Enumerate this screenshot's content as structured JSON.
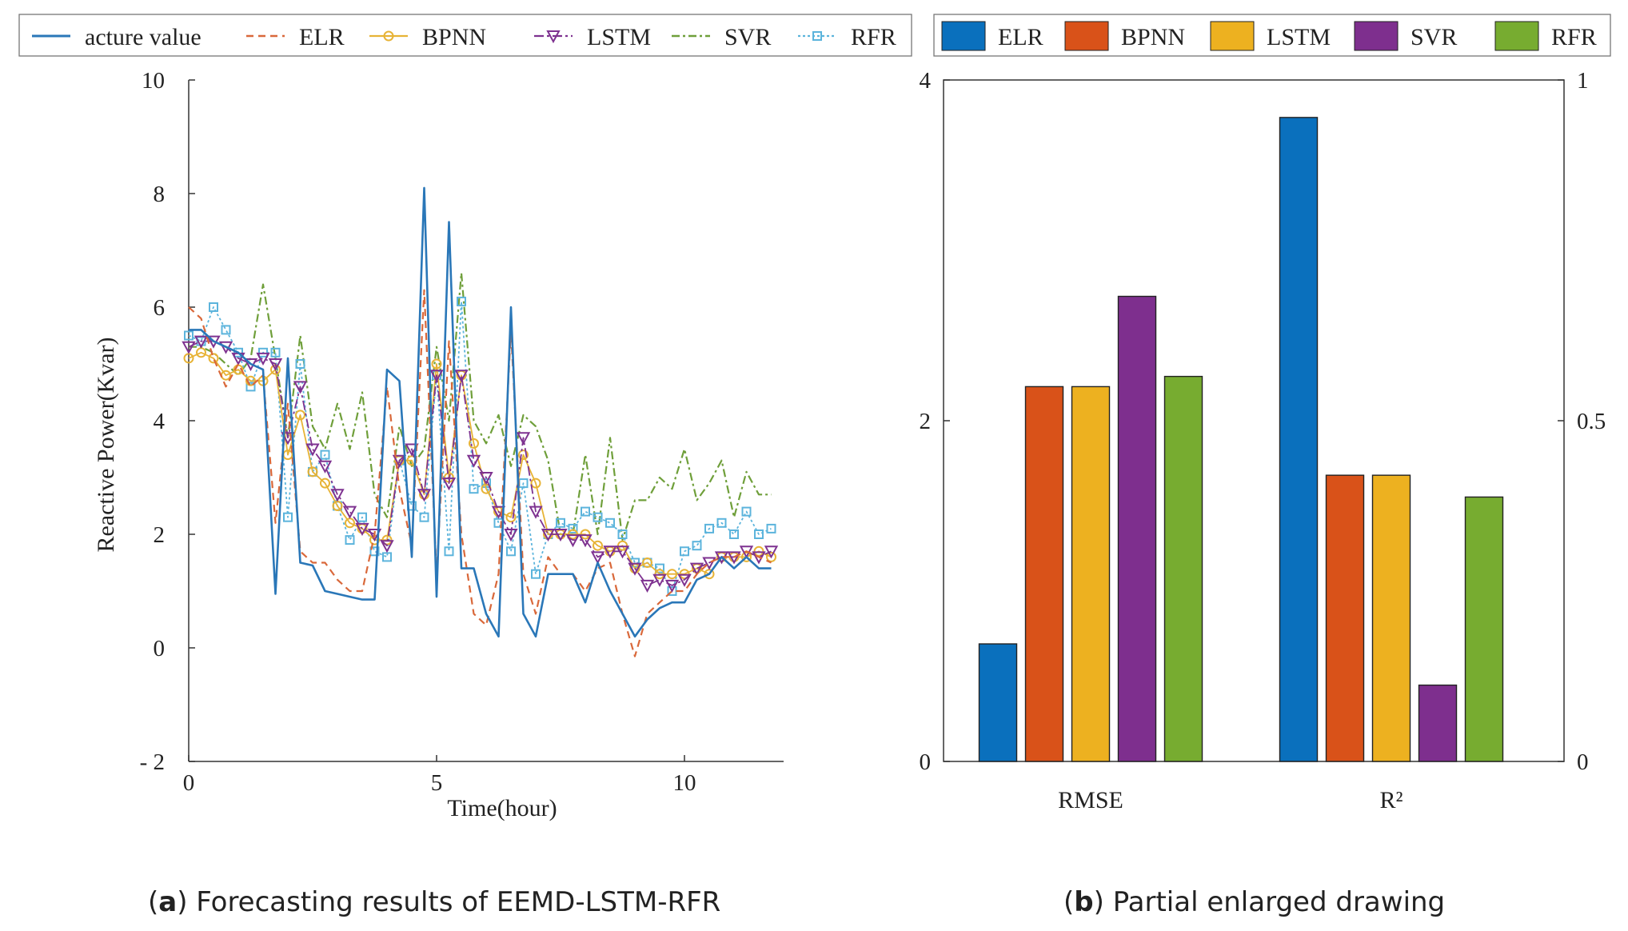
{
  "captions": {
    "a": {
      "letter": "a",
      "text": "Forecasting results of EEMD-LSTM-RFR"
    },
    "b": {
      "letter": "b",
      "text": "Partial enlarged drawing"
    }
  },
  "chart_data": [
    {
      "type": "line",
      "panel": "a",
      "title": "",
      "xlabel": "Time(hour)",
      "ylabel": "Reactive Power(Kvar)",
      "xlim": [
        0,
        12
      ],
      "ylim": [
        -2,
        10
      ],
      "xticks": [
        "0",
        "5",
        "10"
      ],
      "yticks": [
        "- 2",
        "0",
        "2",
        "4",
        "6",
        "8",
        "10"
      ],
      "legend": [
        "acture value",
        "ELR",
        "BPNN",
        "LSTM",
        "SVR",
        "RFR"
      ],
      "colors": {
        "acture value": "#2a77b8",
        "ELR": "#d9683a",
        "BPNN": "#e7b336",
        "LSTM": "#7e3290",
        "SVR": "#6f9f3a",
        "RFR": "#5cb4dc"
      },
      "x": [
        0,
        0.25,
        0.5,
        0.75,
        1,
        1.25,
        1.5,
        1.75,
        2,
        2.25,
        2.5,
        2.75,
        3,
        3.25,
        3.5,
        3.75,
        4,
        4.25,
        4.5,
        4.75,
        5,
        5.25,
        5.5,
        5.75,
        6,
        6.25,
        6.5,
        6.75,
        7,
        7.25,
        7.5,
        7.75,
        8,
        8.25,
        8.5,
        8.75,
        9,
        9.25,
        9.5,
        9.75,
        10,
        10.25,
        10.5,
        10.75,
        11,
        11.25,
        11.5,
        11.75
      ],
      "series": [
        {
          "name": "acture value",
          "values": [
            5.6,
            5.6,
            5.4,
            5.3,
            5.2,
            5.0,
            4.9,
            0.95,
            5.1,
            1.5,
            1.45,
            1.0,
            0.95,
            0.9,
            0.85,
            0.85,
            4.9,
            4.7,
            1.6,
            8.1,
            0.9,
            7.5,
            1.4,
            1.4,
            0.6,
            0.2,
            6.0,
            0.6,
            0.2,
            1.3,
            1.3,
            1.3,
            0.8,
            1.5,
            1.0,
            0.6,
            0.2,
            0.5,
            0.7,
            0.8,
            0.8,
            1.2,
            1.3,
            1.6,
            1.4,
            1.6,
            1.4,
            1.4
          ]
        },
        {
          "name": "ELR",
          "values": [
            6.0,
            5.8,
            5.1,
            4.6,
            5.0,
            4.6,
            4.8,
            2.2,
            4.3,
            1.7,
            1.5,
            1.5,
            1.2,
            1.0,
            1.0,
            2.0,
            4.6,
            2.8,
            1.8,
            6.3,
            1.3,
            5.4,
            2.0,
            0.6,
            0.4,
            1.3,
            5.6,
            1.3,
            0.6,
            1.6,
            1.3,
            1.3,
            1.0,
            1.4,
            1.5,
            0.6,
            -0.15,
            0.6,
            0.8,
            1.0,
            1.0,
            1.3,
            1.5,
            1.6,
            1.6,
            1.7,
            1.6,
            1.5
          ]
        },
        {
          "name": "BPNN",
          "values": [
            5.1,
            5.2,
            5.1,
            4.8,
            4.9,
            4.7,
            4.7,
            4.9,
            3.4,
            4.1,
            3.1,
            2.9,
            2.5,
            2.2,
            2.1,
            1.9,
            1.9,
            3.3,
            3.3,
            2.7,
            5.0,
            3.0,
            4.8,
            3.6,
            2.8,
            2.4,
            2.3,
            3.4,
            2.9,
            2.0,
            2.0,
            2.0,
            2.0,
            1.8,
            1.7,
            1.8,
            1.4,
            1.5,
            1.3,
            1.3,
            1.3,
            1.4,
            1.3,
            1.6,
            1.6,
            1.6,
            1.7,
            1.6
          ]
        },
        {
          "name": "LSTM",
          "values": [
            5.3,
            5.4,
            5.4,
            5.3,
            5.1,
            5.0,
            5.1,
            5.0,
            3.7,
            4.6,
            3.5,
            3.2,
            2.7,
            2.4,
            2.1,
            2.0,
            1.8,
            3.3,
            3.5,
            2.7,
            4.8,
            2.9,
            4.8,
            3.3,
            3.0,
            2.4,
            2.0,
            3.7,
            2.4,
            2.0,
            2.0,
            1.9,
            1.9,
            1.6,
            1.7,
            1.7,
            1.4,
            1.1,
            1.2,
            1.1,
            1.2,
            1.4,
            1.5,
            1.6,
            1.6,
            1.7,
            1.6,
            1.7
          ]
        },
        {
          "name": "SVR",
          "values": [
            5.3,
            5.3,
            5.2,
            5.0,
            4.8,
            5.1,
            6.4,
            5.1,
            3.7,
            5.5,
            3.9,
            3.5,
            4.3,
            3.5,
            4.5,
            2.7,
            2.3,
            3.9,
            3.2,
            3.5,
            5.3,
            4.0,
            6.6,
            4.0,
            3.6,
            4.1,
            3.2,
            4.1,
            3.9,
            3.3,
            2.0,
            2.0,
            3.4,
            2.0,
            3.7,
            1.9,
            2.6,
            2.6,
            3.0,
            2.8,
            3.5,
            2.6,
            2.9,
            3.3,
            2.3,
            3.1,
            2.7,
            2.7
          ]
        },
        {
          "name": "RFR",
          "values": [
            5.5,
            5.4,
            6.0,
            5.6,
            5.2,
            4.6,
            5.2,
            5.2,
            2.3,
            5.0,
            3.1,
            3.4,
            2.5,
            1.9,
            2.3,
            1.7,
            1.6,
            3.3,
            2.5,
            2.3,
            4.8,
            1.7,
            6.1,
            2.8,
            2.9,
            2.2,
            1.7,
            2.9,
            1.3,
            2.0,
            2.2,
            2.1,
            2.4,
            2.3,
            2.2,
            2.0,
            1.5,
            1.5,
            1.4,
            1.0,
            1.7,
            1.8,
            2.1,
            2.2,
            2.0,
            2.4,
            2.0,
            2.1
          ]
        }
      ]
    },
    {
      "type": "bar",
      "panel": "b",
      "title": "",
      "categories": [
        "RMSE",
        "R²"
      ],
      "legend": [
        "ELR",
        "BPNN",
        "LSTM",
        "SVR",
        "RFR"
      ],
      "colors": {
        "ELR": "#0a70bd",
        "BPNN": "#d95219",
        "LSTM": "#edb120",
        "SVR": "#7e2f8e",
        "RFR": "#77ac30"
      },
      "left_axis": {
        "ylim": [
          0,
          4
        ],
        "ticks": [
          "0",
          "2",
          "4"
        ]
      },
      "right_axis": {
        "ylim": [
          0,
          1
        ],
        "ticks": [
          "0",
          "0.5",
          "1"
        ]
      },
      "series": [
        {
          "name": "ELR",
          "values": [
            0.69,
            0.945
          ]
        },
        {
          "name": "BPNN",
          "values": [
            2.2,
            0.42
          ]
        },
        {
          "name": "LSTM",
          "values": [
            2.2,
            0.42
          ]
        },
        {
          "name": "SVR",
          "values": [
            2.73,
            0.112
          ]
        },
        {
          "name": "RFR",
          "values": [
            2.26,
            0.388
          ]
        }
      ]
    }
  ]
}
